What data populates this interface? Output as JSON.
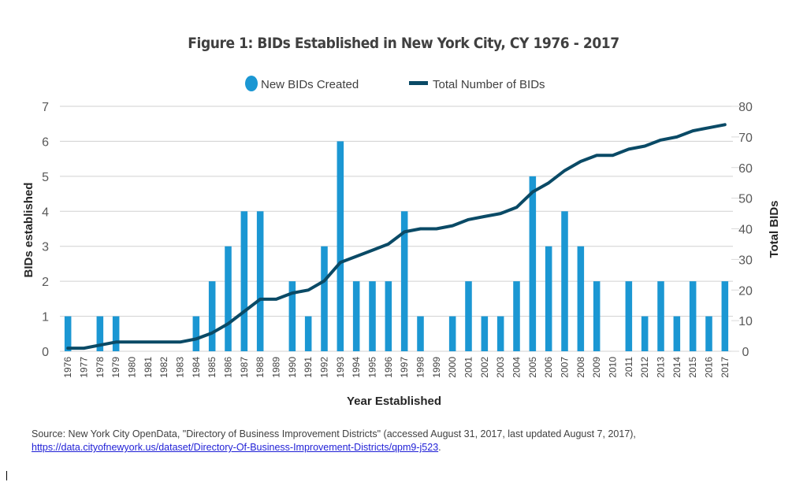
{
  "chart_data": {
    "type": "bar+line",
    "title": "Figure 1: BIDs Established in New York City, CY 1976 - 2017",
    "xlabel": "Year Established",
    "ylabel_left": "BIDs established",
    "ylabel_right": "Total BIDs",
    "ylim_left": [
      0,
      7
    ],
    "ylim_right": [
      0,
      80
    ],
    "yticks_left": [
      0,
      1,
      2,
      3,
      4,
      5,
      6,
      7
    ],
    "yticks_right": [
      0,
      10,
      20,
      30,
      40,
      50,
      60,
      70,
      80
    ],
    "grid": true,
    "legend_position": "top-center",
    "categories": [
      "1976",
      "1977",
      "1978",
      "1979",
      "1980",
      "1981",
      "1982",
      "1983",
      "1984",
      "1985",
      "1986",
      "1987",
      "1988",
      "1989",
      "1990",
      "1991",
      "1992",
      "1993",
      "1994",
      "1995",
      "1996",
      "1997",
      "1998",
      "1999",
      "2000",
      "2001",
      "2002",
      "2003",
      "2004",
      "2005",
      "2006",
      "2007",
      "2008",
      "2009",
      "2010",
      "2011",
      "2012",
      "2013",
      "2014",
      "2015",
      "2016",
      "2017"
    ],
    "series": [
      {
        "name": "New BIDs Created",
        "type": "bar",
        "axis": "left",
        "color": "#1b97d3",
        "values": [
          1,
          0,
          1,
          1,
          0,
          0,
          0,
          0,
          1,
          2,
          3,
          4,
          4,
          0,
          2,
          1,
          3,
          6,
          2,
          2,
          2,
          4,
          1,
          0,
          1,
          2,
          1,
          1,
          2,
          5,
          3,
          4,
          3,
          2,
          0,
          2,
          1,
          2,
          1,
          2,
          1,
          2
        ]
      },
      {
        "name": "Total Number of BIDs",
        "type": "line",
        "axis": "right",
        "color": "#0a4a66",
        "values": [
          1,
          1,
          2,
          3,
          3,
          3,
          3,
          3,
          4,
          6,
          9,
          13,
          17,
          17,
          19,
          20,
          23,
          29,
          31,
          33,
          35,
          39,
          40,
          40,
          41,
          43,
          44,
          45,
          47,
          52,
          55,
          59,
          62,
          64,
          64,
          66,
          67,
          69,
          70,
          72,
          73,
          74
        ]
      }
    ]
  },
  "source": {
    "text": "Source: New York City OpenData, \"Directory of Business Improvement Districts\" (accessed August 31, 2017, last updated August 7, 2017), ",
    "link": "https://data.cityofnewyork.us/dataset/Directory-Of-Business-Improvement-Districts/qpm9-j523",
    "trailing": "."
  }
}
